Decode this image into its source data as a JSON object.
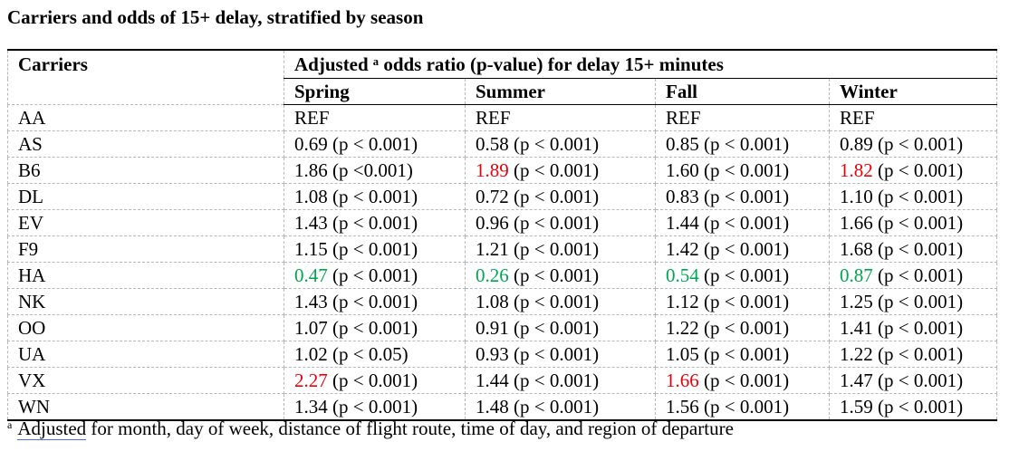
{
  "title": "Carriers and odds of 15+ delay, stratified by season",
  "header": {
    "carriers": "Carriers",
    "group_label": "Adjusted ᵃ odds ratio (p-value) for delay 15+ minutes",
    "seasons": [
      "Spring",
      "Summer",
      "Fall",
      "Winter"
    ]
  },
  "rows": [
    {
      "carrier": "AA",
      "cells": [
        {
          "value": "REF",
          "p": ""
        },
        {
          "value": "REF",
          "p": ""
        },
        {
          "value": "REF",
          "p": ""
        },
        {
          "value": "REF",
          "p": ""
        }
      ]
    },
    {
      "carrier": "AS",
      "cells": [
        {
          "value": "0.69",
          "p": " (p < 0.001)"
        },
        {
          "value": "0.58",
          "p": " (p < 0.001)"
        },
        {
          "value": "0.85",
          "p": " (p < 0.001)"
        },
        {
          "value": "0.89",
          "p": " (p < 0.001)"
        }
      ]
    },
    {
      "carrier": "B6",
      "cells": [
        {
          "value": "1.86",
          "p": " (p <0.001)"
        },
        {
          "value": "1.89",
          "p": " (p < 0.001)",
          "color": "red"
        },
        {
          "value": "1.60",
          "p": " (p < 0.001)"
        },
        {
          "value": "1.82",
          "p": " (p < 0.001)",
          "color": "red"
        }
      ]
    },
    {
      "carrier": "DL",
      "cells": [
        {
          "value": "1.08",
          "p": " (p < 0.001)"
        },
        {
          "value": "0.72",
          "p": " (p < 0.001)"
        },
        {
          "value": "0.83",
          "p": " (p < 0.001)"
        },
        {
          "value": "1.10",
          "p": " (p < 0.001)"
        }
      ]
    },
    {
      "carrier": "EV",
      "cells": [
        {
          "value": "1.43",
          "p": " (p < 0.001)"
        },
        {
          "value": "0.96",
          "p": " (p < 0.001)"
        },
        {
          "value": "1.44",
          "p": " (p < 0.001)"
        },
        {
          "value": "1.66",
          "p": " (p < 0.001)"
        }
      ]
    },
    {
      "carrier": "F9",
      "cells": [
        {
          "value": "1.15",
          "p": " (p < 0.001)"
        },
        {
          "value": "1.21",
          "p": " (p < 0.001)"
        },
        {
          "value": "1.42",
          "p": " (p < 0.001)"
        },
        {
          "value": "1.68",
          "p": " (p < 0.001)"
        }
      ]
    },
    {
      "carrier": "HA",
      "cells": [
        {
          "value": "0.47",
          "p": " (p < 0.001)",
          "color": "green"
        },
        {
          "value": "0.26",
          "p": " (p < 0.001)",
          "color": "green"
        },
        {
          "value": "0.54",
          "p": " (p < 0.001)",
          "color": "green"
        },
        {
          "value": "0.87",
          "p": " (p < 0.001)",
          "color": "green"
        }
      ]
    },
    {
      "carrier": "NK",
      "cells": [
        {
          "value": "1.43",
          "p": " (p < 0.001)"
        },
        {
          "value": "1.08",
          "p": " (p < 0.001)"
        },
        {
          "value": "1.12",
          "p": " (p < 0.001)"
        },
        {
          "value": "1.25",
          "p": " (p < 0.001)"
        }
      ]
    },
    {
      "carrier": "OO",
      "cells": [
        {
          "value": "1.07",
          "p": " (p < 0.001)"
        },
        {
          "value": "0.91",
          "p": " (p < 0.001)"
        },
        {
          "value": "1.22",
          "p": " (p < 0.001)"
        },
        {
          "value": "1.41",
          "p": " (p < 0.001)"
        }
      ]
    },
    {
      "carrier": "UA",
      "cells": [
        {
          "value": "1.02",
          "p": " (p < 0.05)"
        },
        {
          "value": "0.93",
          "p": " (p < 0.001)"
        },
        {
          "value": "1.05",
          "p": " (p < 0.001)"
        },
        {
          "value": "1.22",
          "p": " (p < 0.001)"
        }
      ]
    },
    {
      "carrier": "VX",
      "cells": [
        {
          "value": "2.27",
          "p": " (p < 0.001)",
          "color": "red"
        },
        {
          "value": "1.44",
          "p": " (p < 0.001)"
        },
        {
          "value": "1.66",
          "p": " (p < 0.001)",
          "color": "red"
        },
        {
          "value": "1.47",
          "p": " (p < 0.001)"
        }
      ]
    },
    {
      "carrier": "WN",
      "cells": [
        {
          "value": "1.34",
          "p": " (p < 0.001)"
        },
        {
          "value": "1.48",
          "p": " (p < 0.001)"
        },
        {
          "value": "1.56",
          "p": " (p < 0.001)"
        },
        {
          "value": "1.59",
          "p": " (p < 0.001)"
        }
      ]
    }
  ],
  "colors": {
    "red": "#e8000b",
    "green": "#00a650"
  },
  "footnote": {
    "marker": "a",
    "underlined": "Adjusted",
    "text": " for month, day of week, distance of flight route, time of day, and region of departure"
  }
}
